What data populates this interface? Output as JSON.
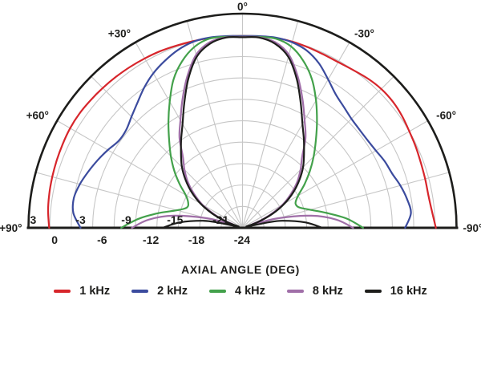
{
  "chart_data": {
    "type": "line",
    "subtype": "polar-half",
    "title": "",
    "xlabel": "AXIAL ANGLE (DEG)",
    "angle_range_deg": [
      -90,
      90
    ],
    "angle_grid_step_deg": 15,
    "angle_tick_labels": [
      {
        "angle": 0,
        "label": "0°"
      },
      {
        "angle": 30,
        "label": "+30°"
      },
      {
        "angle": -30,
        "label": "-30°"
      },
      {
        "angle": 60,
        "label": "+60°"
      },
      {
        "angle": -60,
        "label": "-60°"
      },
      {
        "angle": 90,
        "label": "+90°"
      },
      {
        "angle": -90,
        "label": "-90°"
      }
    ],
    "radial_axis": {
      "unit": "dB",
      "min": -27,
      "max": 3,
      "ring_step": 3,
      "labels_above_baseline": [
        {
          "value": 3,
          "label": "3"
        },
        {
          "value": -3,
          "label": "-3"
        },
        {
          "value": -9,
          "label": "-9"
        },
        {
          "value": -15,
          "label": "-15"
        },
        {
          "value": -21,
          "label": "-21"
        }
      ],
      "labels_below_baseline": [
        {
          "value": 0,
          "label": "0"
        },
        {
          "value": -6,
          "label": "-6"
        },
        {
          "value": -12,
          "label": "-12"
        },
        {
          "value": -18,
          "label": "-18"
        },
        {
          "value": -24,
          "label": "-24"
        }
      ]
    },
    "grid": {
      "color": "#c6c6c6",
      "axis_color": "#1d1d1b",
      "background": "#ffffff"
    },
    "legend": {
      "position": "bottom",
      "entries": [
        "1 kHz",
        "2 kHz",
        "4 kHz",
        "8 kHz",
        "16 kHz"
      ]
    },
    "series": [
      {
        "name": "1 kHz",
        "color": "#d7252b",
        "points": [
          [
            90,
            0.1
          ],
          [
            85,
            0.35
          ],
          [
            80,
            0.5
          ],
          [
            75,
            0.6
          ],
          [
            70,
            0.7
          ],
          [
            65,
            0.8
          ],
          [
            60,
            0.9
          ],
          [
            55,
            0.9
          ],
          [
            50,
            0.8
          ],
          [
            45,
            0.7
          ],
          [
            40,
            0.6
          ],
          [
            35,
            0.5
          ],
          [
            30,
            0.4
          ],
          [
            25,
            0.3
          ],
          [
            20,
            0.15
          ],
          [
            15,
            0.05
          ],
          [
            10,
            0
          ],
          [
            5,
            -0.1
          ],
          [
            0,
            -0.15
          ],
          [
            -5,
            -0.1
          ],
          [
            -10,
            0
          ],
          [
            -15,
            0
          ],
          [
            -20,
            -0.1
          ],
          [
            -25,
            -0.2
          ],
          [
            -30,
            -0.2
          ],
          [
            -35,
            0
          ],
          [
            -40,
            0.3
          ],
          [
            -45,
            0.5
          ],
          [
            -50,
            0.5
          ],
          [
            -55,
            0.3
          ],
          [
            -60,
            0
          ],
          [
            -65,
            -0.2
          ],
          [
            -70,
            -0.4
          ],
          [
            -75,
            -0.5
          ],
          [
            -80,
            -0.55
          ],
          [
            -85,
            -0.35
          ],
          [
            -90,
            0.1
          ]
        ]
      },
      {
        "name": "2 kHz",
        "color": "#3b4b9e",
        "points": [
          [
            90,
            -4.3
          ],
          [
            85,
            -3.2
          ],
          [
            80,
            -3.0
          ],
          [
            75,
            -3.4
          ],
          [
            70,
            -4.0
          ],
          [
            65,
            -4.6
          ],
          [
            60,
            -5.2
          ],
          [
            55,
            -5.8
          ],
          [
            50,
            -5.7
          ],
          [
            45,
            -5.0
          ],
          [
            40,
            -4.1
          ],
          [
            35,
            -3.0
          ],
          [
            30,
            -2.0
          ],
          [
            25,
            -1.2
          ],
          [
            20,
            -0.5
          ],
          [
            15,
            -0.05
          ],
          [
            10,
            0.05
          ],
          [
            5,
            -0.05
          ],
          [
            0,
            -0.15
          ],
          [
            -5,
            -0.05
          ],
          [
            -10,
            0.05
          ],
          [
            -15,
            -0.1
          ],
          [
            -20,
            -0.6
          ],
          [
            -25,
            -1.6
          ],
          [
            -30,
            -3.0
          ],
          [
            -35,
            -4.2
          ],
          [
            -40,
            -4.9
          ],
          [
            -45,
            -5.4
          ],
          [
            -50,
            -5.6
          ],
          [
            -55,
            -5.6
          ],
          [
            -60,
            -5.4
          ],
          [
            -65,
            -5.0
          ],
          [
            -70,
            -4.7
          ],
          [
            -75,
            -4.1
          ],
          [
            -80,
            -3.6
          ],
          [
            -85,
            -3.3
          ],
          [
            -90,
            -4.2
          ]
        ]
      },
      {
        "name": "4 kHz",
        "color": "#43a14b",
        "points": [
          [
            90,
            -10.0
          ],
          [
            85,
            -12.4
          ],
          [
            80,
            -15.1
          ],
          [
            75,
            -17.5
          ],
          [
            70,
            -18.7
          ],
          [
            65,
            -18.6
          ],
          [
            60,
            -17.8
          ],
          [
            55,
            -16.2
          ],
          [
            50,
            -14.5
          ],
          [
            45,
            -12.8
          ],
          [
            40,
            -11.0
          ],
          [
            35,
            -8.9
          ],
          [
            30,
            -6.6
          ],
          [
            25,
            -4.1
          ],
          [
            20,
            -2.2
          ],
          [
            15,
            -0.8
          ],
          [
            10,
            -0.1
          ],
          [
            5,
            -0.15
          ],
          [
            0,
            -0.25
          ],
          [
            -5,
            -0.15
          ],
          [
            -10,
            -0.1
          ],
          [
            -15,
            -0.7
          ],
          [
            -20,
            -2.1
          ],
          [
            -25,
            -4.0
          ],
          [
            -30,
            -6.4
          ],
          [
            -35,
            -8.8
          ],
          [
            -40,
            -11.0
          ],
          [
            -45,
            -12.9
          ],
          [
            -50,
            -14.7
          ],
          [
            -55,
            -16.4
          ],
          [
            -60,
            -18.0
          ],
          [
            -65,
            -18.8
          ],
          [
            -70,
            -18.6
          ],
          [
            -75,
            -17.2
          ],
          [
            -80,
            -15.0
          ],
          [
            -85,
            -12.3
          ],
          [
            -90,
            -10.1
          ]
        ]
      },
      {
        "name": "8 kHz",
        "color": "#a06fa8",
        "points": [
          [
            90,
            -11.5
          ],
          [
            85,
            -13.8
          ],
          [
            80,
            -17.2
          ],
          [
            75,
            -21.8
          ],
          [
            71,
            -25.4
          ],
          [
            68,
            -24.3
          ],
          [
            65,
            -22.8
          ],
          [
            60,
            -20.5
          ],
          [
            55,
            -18.7
          ],
          [
            50,
            -17.0
          ],
          [
            45,
            -15.5
          ],
          [
            40,
            -14.0
          ],
          [
            35,
            -11.6
          ],
          [
            30,
            -9.6
          ],
          [
            25,
            -7.1
          ],
          [
            20,
            -4.4
          ],
          [
            15,
            -1.9
          ],
          [
            10,
            -0.6
          ],
          [
            5,
            -0.2
          ],
          [
            0,
            -0.25
          ],
          [
            -5,
            -0.2
          ],
          [
            -10,
            -0.6
          ],
          [
            -15,
            -1.9
          ],
          [
            -20,
            -4.4
          ],
          [
            -25,
            -7.1
          ],
          [
            -30,
            -9.6
          ],
          [
            -35,
            -11.6
          ],
          [
            -40,
            -14.0
          ],
          [
            -45,
            -15.5
          ],
          [
            -50,
            -17.0
          ],
          [
            -55,
            -18.7
          ],
          [
            -60,
            -20.5
          ],
          [
            -65,
            -22.8
          ],
          [
            -68,
            -24.3
          ],
          [
            -71,
            -25.4
          ],
          [
            -75,
            -21.8
          ],
          [
            -80,
            -17.2
          ],
          [
            -85,
            -13.8
          ],
          [
            -90,
            -11.5
          ]
        ]
      },
      {
        "name": "16 kHz",
        "color": "#1d1d1b",
        "points": [
          [
            90,
            -15.8
          ],
          [
            85,
            -18.2
          ],
          [
            80,
            -21.3
          ],
          [
            78,
            -23.3
          ],
          [
            74,
            -26.4
          ],
          [
            70,
            -24.8
          ],
          [
            65,
            -22.4
          ],
          [
            60,
            -20.2
          ],
          [
            55,
            -18.3
          ],
          [
            50,
            -16.6
          ],
          [
            45,
            -15.0
          ],
          [
            40,
            -13.6
          ],
          [
            35,
            -12.0
          ],
          [
            30,
            -10.2
          ],
          [
            25,
            -7.7
          ],
          [
            20,
            -4.8
          ],
          [
            15,
            -2.2
          ],
          [
            10,
            -0.8
          ],
          [
            5,
            -0.25
          ],
          [
            0,
            -0.3
          ],
          [
            -5,
            -0.25
          ],
          [
            -10,
            -0.8
          ],
          [
            -15,
            -2.2
          ],
          [
            -20,
            -4.8
          ],
          [
            -25,
            -7.7
          ],
          [
            -30,
            -10.2
          ],
          [
            -35,
            -12.0
          ],
          [
            -40,
            -13.6
          ],
          [
            -45,
            -15.0
          ],
          [
            -50,
            -16.6
          ],
          [
            -55,
            -18.3
          ],
          [
            -60,
            -20.2
          ],
          [
            -65,
            -22.4
          ],
          [
            -70,
            -24.8
          ],
          [
            -74,
            -26.4
          ],
          [
            -78,
            -23.3
          ],
          [
            -80,
            -21.3
          ],
          [
            -85,
            -18.2
          ],
          [
            -90,
            -15.8
          ]
        ]
      }
    ]
  }
}
